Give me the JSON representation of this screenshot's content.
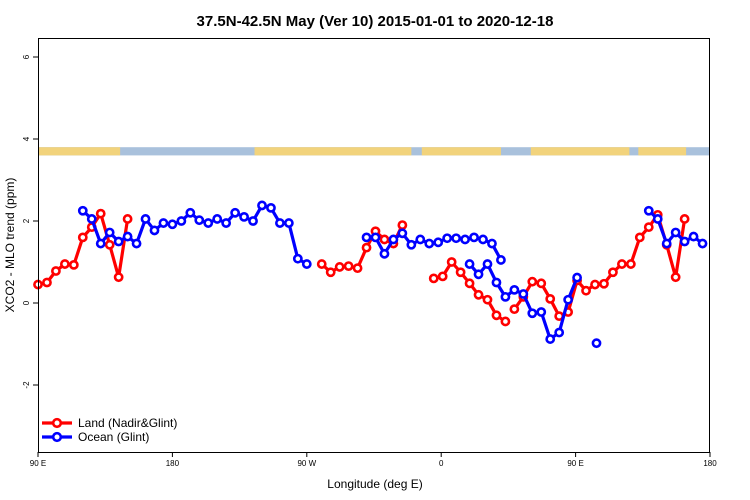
{
  "chart_data": {
    "type": "line",
    "title": "37.5N-42.5N May (Ver 10)   2015-01-01 to 2020-12-18",
    "xlabel": "Longitude (deg E)",
    "ylabel": "XCO2 - MLO trend (ppm)",
    "xlim": [
      90,
      450
    ],
    "ylim": [
      -3.8,
      6.5
    ],
    "x_ticks": [
      90,
      180,
      270,
      360,
      450
    ],
    "x_tick_labels": [
      "90 E",
      "180",
      "90 W",
      "0",
      "90 E",
      "180"
    ],
    "x_tick_positions": [
      90,
      180,
      270,
      360,
      450,
      540
    ],
    "y_ticks": [
      -2,
      0,
      2,
      4,
      6
    ],
    "y_tick_labels": [
      "-2",
      "0",
      "2",
      "4",
      "6"
    ],
    "legend": "bottom-left",
    "land_mask_strip": {
      "y_range": [
        3.6,
        3.8
      ],
      "land_color": "#F2D37C",
      "ocean_color": "#A9C1DC",
      "land_lon_ranges": [
        [
          90,
          145
        ],
        [
          235,
          340
        ],
        [
          347,
          400
        ],
        [
          420,
          486
        ],
        [
          492,
          524
        ]
      ]
    },
    "series": [
      {
        "name": "Land (Nadir&Glint)",
        "color": "#FF0000",
        "segments": [
          {
            "x": [
              90,
              96,
              102,
              108,
              114,
              120,
              126,
              132,
              138,
              144,
              150,
              156
            ],
            "y": [
              0.45,
              0.5,
              0.78,
              0.95,
              0.93,
              1.6,
              1.85,
              2.18,
              1.42,
              0.63,
              2.05,
              null
            ]
          },
          {
            "x": [
              280,
              286,
              292,
              298,
              304,
              310,
              316,
              322,
              328,
              334,
              340,
              346,
              352,
              358,
              364,
              370,
              376,
              382,
              388,
              394,
              400,
              406
            ],
            "y": [
              0.95,
              0.75,
              0.88,
              0.9,
              0.85,
              1.35,
              1.75,
              1.55,
              1.45,
              1.9,
              null,
              null,
              null,
              null,
              null,
              null,
              null,
              null,
              null,
              null,
              null,
              null
            ]
          },
          {
            "x": [
              355,
              361,
              367,
              373,
              379,
              385,
              391,
              397,
              403
            ],
            "y": [
              0.6,
              0.65,
              1.0,
              0.75,
              0.48,
              0.2,
              0.08,
              -0.3,
              -0.45
            ]
          },
          {
            "x": [
              409,
              415,
              421,
              427,
              433,
              439,
              445,
              451,
              457,
              463,
              469,
              475,
              481,
              487,
              493,
              499,
              505,
              511,
              517,
              523,
              529
            ],
            "y": [
              -0.15,
              0.15,
              0.52,
              0.48,
              0.1,
              -0.32,
              -0.22,
              0.55,
              0.3,
              0.45,
              0.47,
              0.75,
              0.95,
              0.95,
              1.6,
              1.85,
              2.15,
              1.42,
              0.63,
              2.05,
              null
            ]
          }
        ]
      },
      {
        "name": "Ocean (Glint)",
        "color": "#0000FF",
        "segments": [
          {
            "x": [
              120,
              126,
              132,
              138,
              144,
              150,
              156,
              162,
              168,
              174,
              180,
              186,
              192,
              198,
              204,
              210,
              216,
              222,
              228,
              234,
              240,
              246,
              252,
              258,
              264,
              270,
              276
            ],
            "y": [
              2.25,
              2.05,
              1.45,
              1.72,
              1.5,
              1.62,
              1.45,
              2.05,
              1.77,
              1.95,
              1.92,
              2.0,
              2.2,
              2.02,
              1.95,
              2.05,
              1.95,
              2.2,
              2.1,
              2.0,
              2.38,
              2.32,
              1.95,
              1.95,
              1.08,
              0.95,
              null
            ]
          },
          {
            "x": [
              310,
              316,
              322,
              328,
              334,
              340,
              346,
              352,
              358,
              364,
              370,
              376,
              382,
              388,
              394,
              400
            ],
            "y": [
              1.6,
              1.6,
              1.2,
              1.55,
              1.7,
              1.42,
              1.55,
              1.45,
              1.48,
              1.58,
              1.58,
              1.55,
              1.6,
              1.55,
              1.45,
              1.05
            ]
          },
          {
            "x": [
              379,
              385,
              391,
              397,
              403,
              409,
              415,
              421,
              427,
              433,
              439,
              445,
              451,
              457,
              463
            ],
            "y": [
              0.95,
              0.7,
              0.95,
              0.5,
              0.15,
              0.32,
              0.22,
              -0.25,
              -0.22,
              -0.88,
              -0.72,
              0.08,
              0.62,
              null,
              null
            ]
          },
          {
            "x": [
              464
            ],
            "y": [
              -0.98
            ]
          },
          {
            "x": [
              475,
              481,
              487,
              493,
              499,
              505,
              511,
              517,
              523,
              529,
              535,
              541,
              547,
              553,
              559,
              565,
              571,
              577
            ],
            "y": [
              null,
              null,
              null,
              null,
              2.25,
              2.05,
              1.45,
              1.72,
              1.5,
              1.62,
              1.45,
              2.05,
              1.77,
              1.95,
              1.92,
              2.0,
              2.2,
              2.2
            ]
          }
        ]
      }
    ]
  }
}
